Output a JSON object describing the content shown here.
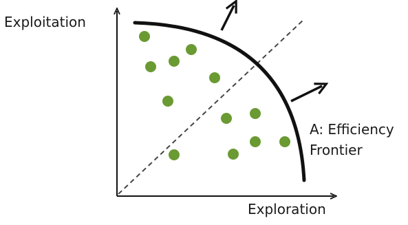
{
  "diagram": {
    "y_axis_label": "Exploitation",
    "x_axis_label": "Exploration",
    "frontier_label_line1": "A: Efficiency",
    "frontier_label_line2": "Frontier",
    "colors": {
      "points": "#6a9a32",
      "lines": "#111111",
      "diagonal": "#444444"
    }
  }
}
